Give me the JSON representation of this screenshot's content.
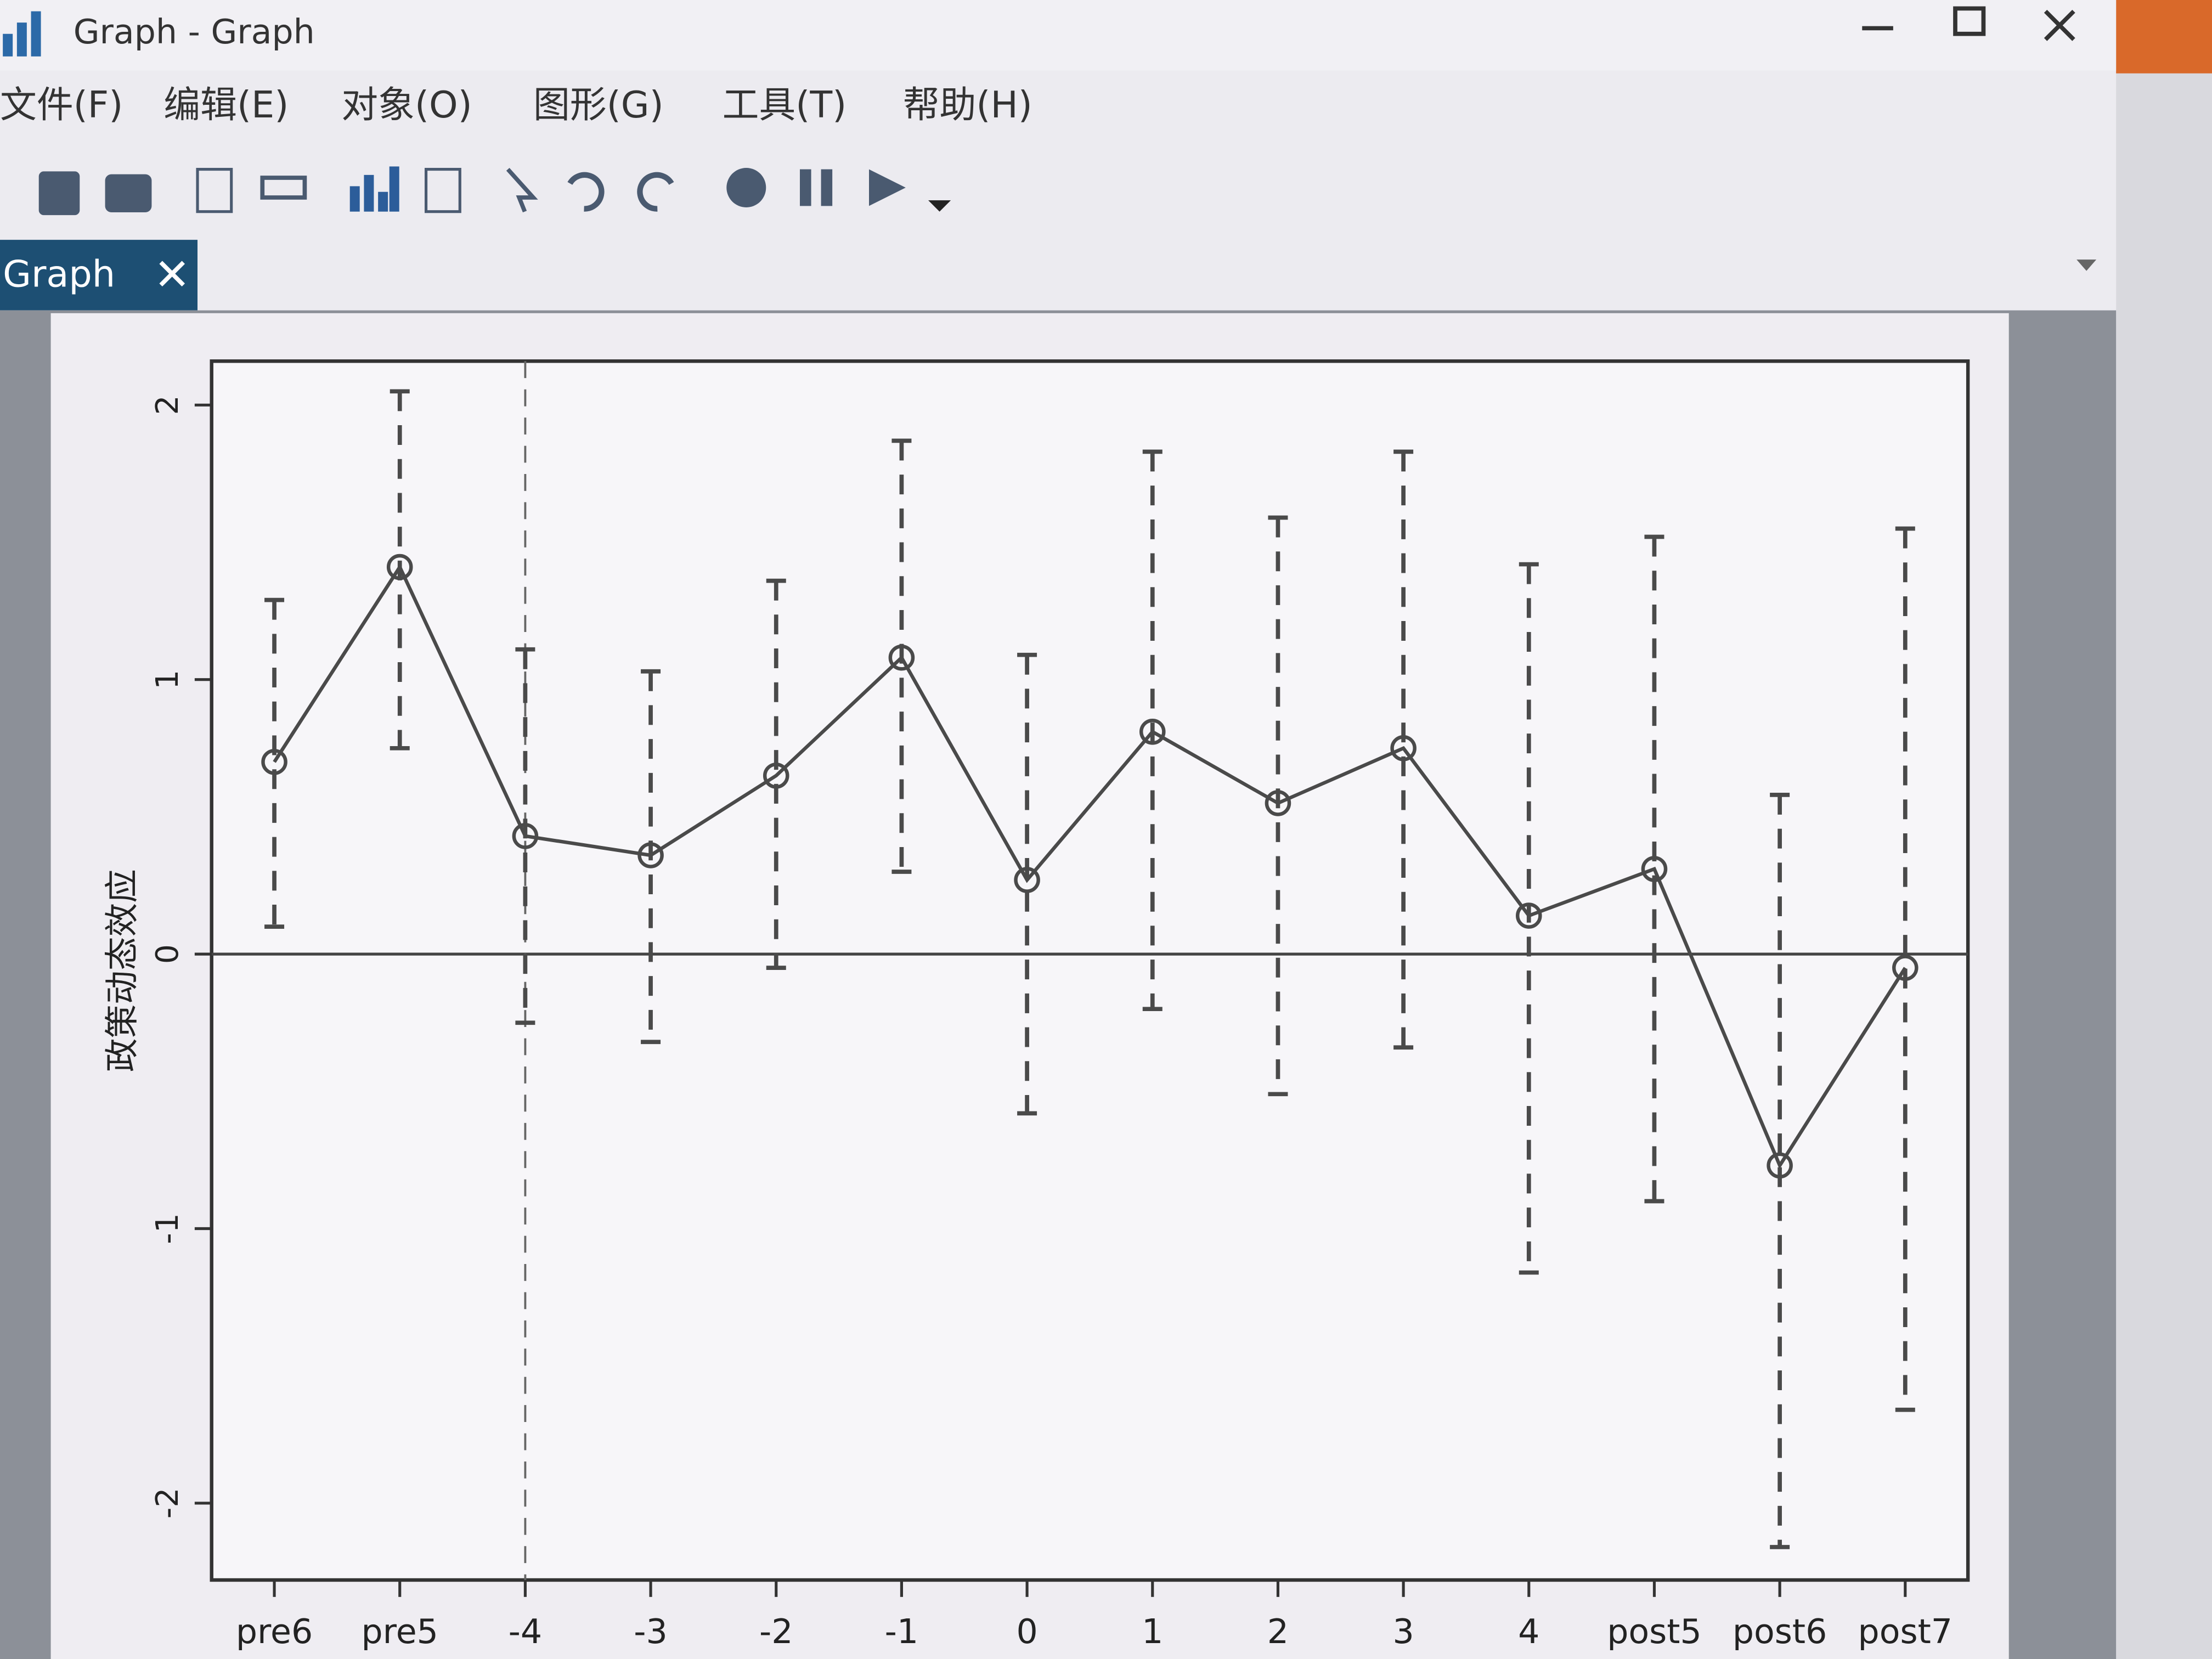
{
  "window": {
    "title": "Graph - Graph",
    "menu": [
      "文件(F)",
      "编辑(E)",
      "对象(O)",
      "图形(G)",
      "工具(T)",
      "帮助(H)"
    ],
    "tab": "Graph"
  },
  "chart_data": {
    "type": "errorbar-line",
    "ylabel": "政策动态效应",
    "categories": [
      "pre6",
      "pre5",
      "-4",
      "-3",
      "-2",
      "-1",
      "0",
      "1",
      "2",
      "3",
      "4",
      "post5",
      "post6",
      "post7"
    ],
    "values": [
      0.7,
      1.41,
      0.43,
      0.36,
      0.65,
      1.08,
      0.27,
      0.81,
      0.55,
      0.75,
      0.14,
      0.31,
      -0.77,
      -0.05
    ],
    "ci_upper": [
      1.29,
      2.05,
      1.11,
      1.03,
      1.36,
      1.87,
      1.09,
      1.83,
      1.59,
      1.83,
      1.42,
      1.52,
      0.58,
      1.55
    ],
    "ci_lower": [
      0.1,
      0.75,
      -0.25,
      -0.32,
      -0.05,
      0.3,
      -0.58,
      -0.2,
      -0.51,
      -0.34,
      -1.16,
      -0.9,
      -2.16,
      -1.66
    ],
    "color": "#4a4a4a",
    "ylim": [
      -2.28,
      2.16
    ],
    "yticks": [
      -2,
      -1,
      0,
      1,
      2
    ],
    "hline": 0,
    "vline_at": "-4"
  }
}
